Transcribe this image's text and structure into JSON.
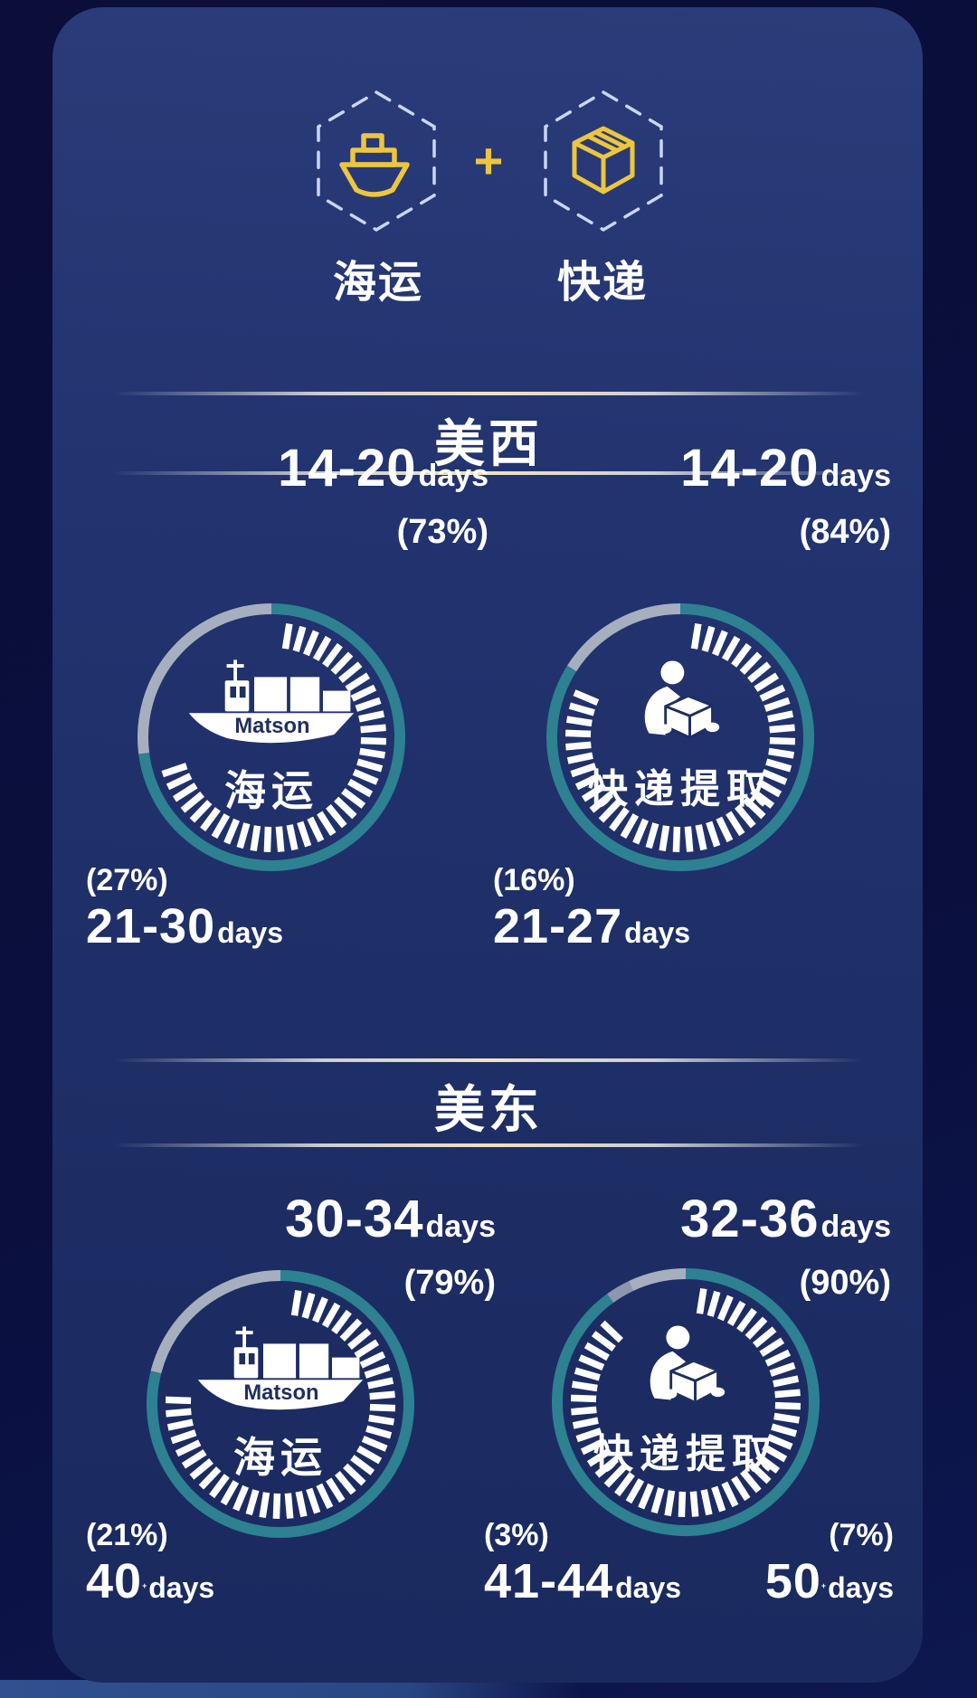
{
  "header": {
    "sea_label": "海运",
    "plus": "+",
    "express_label": "快递"
  },
  "colors": {
    "background": "#0a0e38",
    "card": "#203166",
    "teal": "#2d8191",
    "gray": "#a6afbf",
    "slate": "#8d96ad",
    "yellow": "#ecc63e",
    "divider_gold": "#efe3c2",
    "text": "#ffffff",
    "navy_logo_text": "#1f2f5e"
  },
  "sections": [
    {
      "title": "美西",
      "charts": [
        {
          "name": "ocean",
          "center_brand": "Matson",
          "center_label": "海运",
          "top": {
            "range": "14-20",
            "unit": "days",
            "pct": "(73%)"
          },
          "bottoms": [
            {
              "pct": "(27%)",
              "range": "21-30",
              "sup": "",
              "unit": "days"
            }
          ]
        },
        {
          "name": "express",
          "center_label": "快递提取",
          "top": {
            "range": "14-20",
            "unit": "days",
            "pct": "(84%)"
          },
          "bottoms": [
            {
              "pct": "(16%)",
              "range": "21-27",
              "sup": "",
              "unit": "days"
            }
          ]
        }
      ]
    },
    {
      "title": "美东",
      "charts": [
        {
          "name": "ocean",
          "center_brand": "Matson",
          "center_label": "海运",
          "top": {
            "range": "30-34",
            "unit": "days",
            "pct": "(79%)"
          },
          "bottoms": [
            {
              "pct": "(21%)",
              "range": "40",
              "sup": "+",
              "unit": "days"
            }
          ]
        },
        {
          "name": "express",
          "center_label": "快递提取",
          "top": {
            "range": "32-36",
            "unit": "days",
            "pct": "(90%)"
          },
          "bottoms": [
            {
              "pct": "(3%)",
              "range": "41-44",
              "sup": "",
              "unit": "days"
            },
            {
              "pct": "(7%)",
              "range": "50",
              "sup": "+",
              "unit": "days"
            }
          ]
        }
      ]
    }
  ],
  "chart_data": [
    {
      "type": "pie",
      "title": "美西 海运 (Matson)",
      "legend_position": "none",
      "slices": [
        {
          "label": "14-20 days",
          "pct": 73,
          "color": "#2d8191"
        },
        {
          "label": "21-30 days",
          "pct": 27,
          "color": "#a6afbf"
        }
      ]
    },
    {
      "type": "pie",
      "title": "美西 快递提取",
      "slices": [
        {
          "label": "14-20 days",
          "pct": 84,
          "color": "#2d8191"
        },
        {
          "label": "21-27 days",
          "pct": 16,
          "color": "#a6afbf"
        }
      ]
    },
    {
      "type": "pie",
      "title": "美东 海运 (Matson)",
      "slices": [
        {
          "label": "30-34 days",
          "pct": 79,
          "color": "#2d8191"
        },
        {
          "label": "40+ days",
          "pct": 21,
          "color": "#a6afbf"
        }
      ]
    },
    {
      "type": "pie",
      "title": "美东 快递提取",
      "slices": [
        {
          "label": "32-36 days",
          "pct": 90,
          "color": "#2d8191"
        },
        {
          "label": "41-44 days",
          "pct": 3,
          "color": "#8d96ad"
        },
        {
          "label": "50+ days",
          "pct": 7,
          "color": "#a6afbf"
        }
      ]
    }
  ]
}
